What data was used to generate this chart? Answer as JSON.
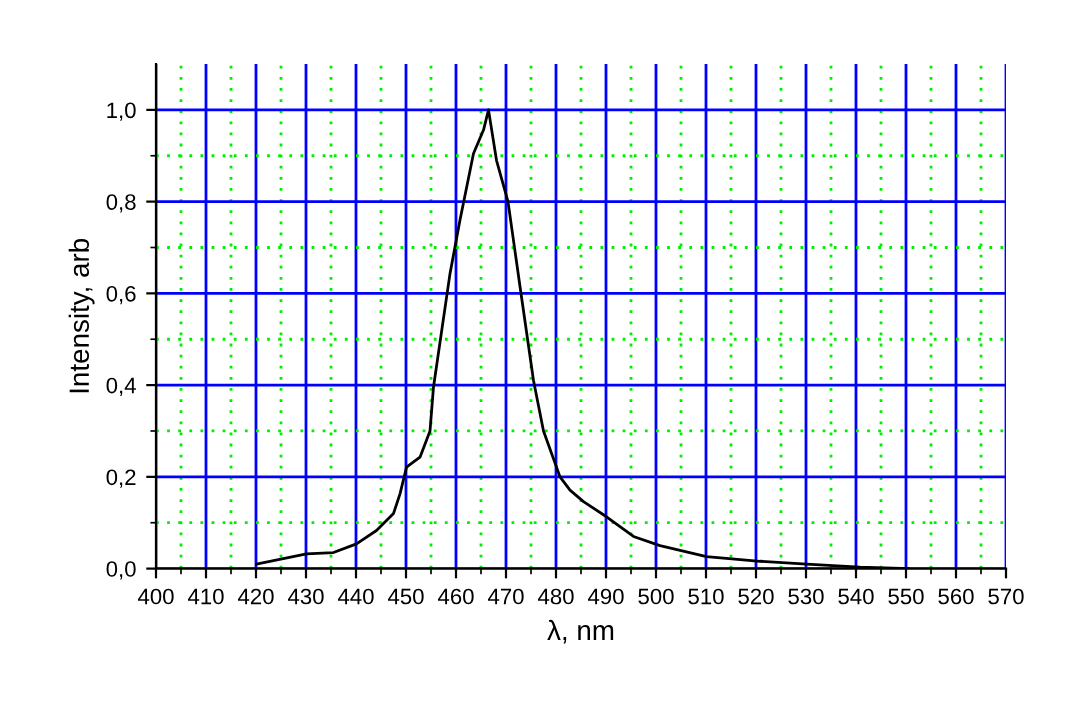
{
  "chart_data": {
    "type": "line",
    "xlabel": "λ, nm",
    "ylabel": "Intensity, arb",
    "x": [
      420.1,
      430.1,
      435.5,
      440.1,
      444.1,
      447.5,
      448.8,
      450.1,
      452.8,
      454.8,
      455.5,
      458.8,
      460.8,
      463.5,
      465.5,
      466.5,
      468.1,
      470.4,
      472.8,
      475.5,
      477.5,
      480.8,
      482.8,
      485.5,
      490.1,
      495.5,
      500.8,
      510.1,
      520.8,
      530.1,
      540.8,
      550.5
    ],
    "series": [
      {
        "color": "#000000",
        "values": [
          0.01,
          0.032,
          0.035,
          0.054,
          0.083,
          0.12,
          0.163,
          0.221,
          0.243,
          0.3,
          0.396,
          0.643,
          0.76,
          0.905,
          0.956,
          1.0,
          0.89,
          0.8,
          0.615,
          0.41,
          0.3,
          0.2,
          0.171,
          0.146,
          0.113,
          0.07,
          0.05,
          0.026,
          0.016,
          0.01,
          0.003,
          0.0
        ]
      }
    ],
    "xlim": [
      400,
      570
    ],
    "ylim": [
      0,
      1.1
    ],
    "xticks": [
      400,
      {
        "value": 405,
        "label": null
      },
      410,
      {
        "value": 415,
        "label": null
      },
      420,
      {
        "value": 425,
        "label": null
      },
      430,
      {
        "value": 435,
        "label": null
      },
      440,
      {
        "value": 445,
        "label": null
      },
      450,
      {
        "value": 455,
        "label": null
      },
      460,
      {
        "value": 465,
        "label": null
      },
      470,
      {
        "value": 475,
        "label": null
      },
      480,
      {
        "value": 485,
        "label": null
      },
      490,
      {
        "value": 495,
        "label": null
      },
      500,
      {
        "value": 505,
        "label": null
      },
      510,
      {
        "value": 515,
        "label": null
      },
      520,
      {
        "value": 525,
        "label": null
      },
      530,
      {
        "value": 535,
        "label": null
      },
      540,
      {
        "value": 545,
        "label": null
      },
      550,
      {
        "value": 555,
        "label": null
      },
      560,
      {
        "value": 565,
        "label": null
      },
      570
    ],
    "yticks": [
      {
        "value": 0,
        "label": "0,0"
      },
      {
        "value": 0.1,
        "label": null
      },
      {
        "value": 0.2,
        "label": "0,2"
      },
      {
        "value": 0.3,
        "label": null
      },
      {
        "value": 0.4,
        "label": "0,4"
      },
      {
        "value": 0.5,
        "label": null
      },
      {
        "value": 0.6,
        "label": "0,6"
      },
      {
        "value": 0.7,
        "label": null
      },
      {
        "value": 0.8,
        "label": "0,8"
      },
      {
        "value": 0.9,
        "label": null
      },
      {
        "value": 1.0,
        "label": "1,0"
      }
    ],
    "grid": true,
    "marker": "none",
    "line_style": "solid",
    "legend": false
  }
}
